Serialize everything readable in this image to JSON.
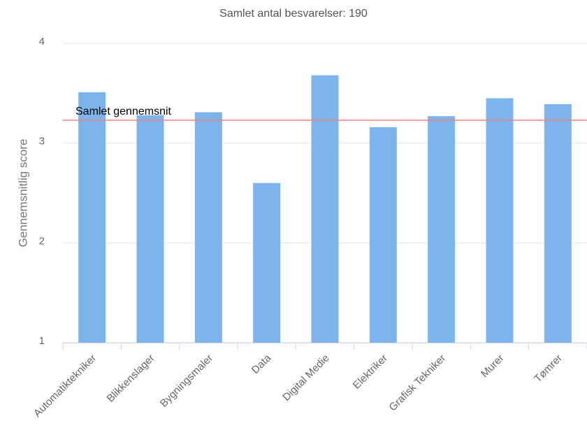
{
  "chart_data": {
    "type": "bar",
    "title": "Samlet antal besvarelser: 190",
    "y_label": "Gennemsnitlig score",
    "categories": [
      "Automatiktekniker",
      "Blikkenslager",
      "Bygningsmaler",
      "Data",
      "Digital Medie",
      "Elektriker",
      "Grafisk Tekniker",
      "Murer",
      "Tømrer"
    ],
    "values": [
      3.51,
      3.28,
      3.31,
      2.6,
      3.68,
      3.16,
      3.27,
      3.45,
      3.39
    ],
    "color": "#7cb5ec",
    "ylim": [
      1,
      4
    ],
    "yticks": [
      1,
      2,
      3,
      4
    ],
    "grid": true,
    "plot_lines": [
      {
        "value": 3.23,
        "label": "Samlet gennemsnit",
        "color": "#f08080"
      }
    ]
  }
}
